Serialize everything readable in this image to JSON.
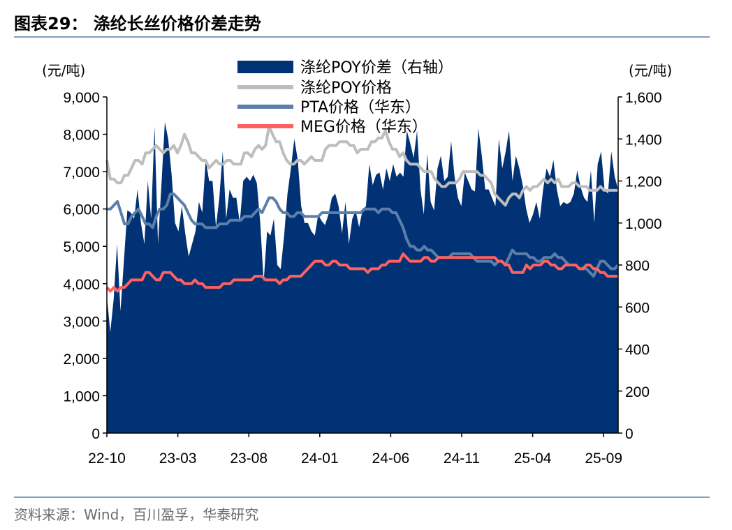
{
  "figure": {
    "title": "图表29：   涤纶长丝价格价差走势",
    "source": "资料来源：Wind，百川盈孚，华泰研究"
  },
  "chart_data": {
    "type": "line",
    "title": "图表29：   涤纶长丝价格价差走势",
    "left_axis": {
      "unit": "(元/吨)",
      "ylim": [
        0,
        9000
      ],
      "ticks": [
        "0",
        "1,000",
        "2,000",
        "3,000",
        "4,000",
        "5,000",
        "6,000",
        "7,000",
        "8,000",
        "9,000"
      ]
    },
    "right_axis": {
      "unit": "(元/吨)",
      "ylim": [
        0,
        1600
      ],
      "ticks": [
        "0",
        "200",
        "400",
        "600",
        "800",
        "1,000",
        "1,200",
        "1,400",
        "1,600"
      ]
    },
    "x_tick_labels": [
      "22-10",
      "23-03",
      "23-08",
      "24-01",
      "24-06",
      "24-11",
      "25-04",
      "25-09"
    ],
    "legend_position": "top-center",
    "colors": {
      "spread": "#003275",
      "poy": "#bdbdbd",
      "pta": "#5b7fa8",
      "meg": "#ff6060"
    },
    "series": [
      {
        "name": "涤纶POY价差（右轴）",
        "type": "area",
        "axis": "right",
        "values": [
          650,
          480,
          640,
          900,
          580,
          820,
          1060,
          1050,
          1020,
          1160,
          1000,
          900,
          1200,
          1020,
          1460,
          900,
          1180,
          1480,
          1400,
          1230,
          1000,
          960,
          1080,
          950,
          840,
          900,
          960,
          1100,
          1050,
          1300,
          1200,
          1200,
          980,
          1120,
          1340,
          1020,
          1160,
          1120,
          1120,
          1000,
          1200,
          1220,
          1200,
          1230,
          1190,
          1000,
          720,
          960,
          940,
          1020,
          800,
          780,
          940,
          1140,
          1260,
          1400,
          1300,
          1080,
          1000,
          1000,
          960,
          940,
          1040,
          1010,
          990,
          1040,
          1120,
          1140,
          1080,
          950,
          1100,
          900,
          1020,
          1060,
          980,
          1060,
          1080,
          1280,
          1180,
          1230,
          1240,
          1160,
          1260,
          1200,
          1280,
          1220,
          1240,
          1220,
          1440,
          1380,
          1310,
          1440,
          1160,
          1040,
          1330,
          1100,
          1060,
          1260,
          1320,
          1200,
          1220,
          1390,
          1220,
          1120,
          1080,
          1240,
          1200,
          1160,
          1150,
          1450,
          1320,
          1160,
          1160,
          1120,
          1080,
          1400,
          1260,
          1340,
          1440,
          1200,
          1320,
          1260,
          1180,
          1070,
          1000,
          1040,
          1100,
          1020,
          1160,
          1260,
          1220,
          1300,
          1160,
          1080,
          1100,
          1090,
          1100,
          1140,
          1250,
          1170,
          1120,
          1100,
          1250,
          1000,
          1280,
          1340,
          1160,
          1140,
          1340,
          1220,
          1160
        ]
      },
      {
        "name": "涤纶POY价格",
        "type": "line",
        "axis": "left",
        "values": [
          7300,
          6800,
          6800,
          6700,
          6700,
          6900,
          6900,
          7100,
          7300,
          7300,
          7200,
          7500,
          7500,
          7600,
          7700,
          7600,
          7500,
          7600,
          7600,
          7700,
          7500,
          7700,
          8000,
          7800,
          7500,
          7500,
          7400,
          7300,
          7300,
          7100,
          7200,
          7300,
          7200,
          7200,
          7300,
          7300,
          7200,
          7200,
          7200,
          7500,
          7500,
          7400,
          7600,
          7700,
          7600,
          7700,
          8200,
          8000,
          7800,
          7800,
          7500,
          7300,
          7200,
          7200,
          7300,
          7300,
          7200,
          7300,
          7400,
          7300,
          7300,
          7300,
          7600,
          7700,
          7700,
          7700,
          7800,
          7800,
          7800,
          7700,
          7700,
          7500,
          7600,
          7600,
          7600,
          7800,
          7800,
          7900,
          7900,
          8100,
          7800,
          7600,
          7600,
          7400,
          7500,
          7300,
          7200,
          7200,
          7200,
          7100,
          7000,
          7000,
          7000,
          6800,
          6700,
          6600,
          6600,
          6700,
          6700,
          6700,
          6800,
          7000,
          7000,
          7000,
          7000,
          7000,
          6900,
          6900,
          6800,
          6700,
          6400,
          6300,
          6200,
          6100,
          6300,
          6400,
          6400,
          6300,
          6500,
          6600,
          6500,
          6600,
          6600,
          6700,
          6800,
          6700,
          6800,
          6700,
          6800,
          6600,
          6600,
          6600,
          6700,
          6700,
          6600,
          6600,
          6600,
          6500,
          6500,
          6500,
          6600,
          6500,
          6500,
          6500,
          6500,
          6500
        ]
      },
      {
        "name": "PTA价格（华东）",
        "type": "line",
        "axis": "left",
        "values": [
          6000,
          6000,
          6100,
          6200,
          5900,
          5600,
          5600,
          5800,
          5900,
          6000,
          5800,
          5600,
          5600,
          5500,
          5800,
          6000,
          6000,
          6100,
          6400,
          6400,
          6300,
          6200,
          6100,
          5900,
          5700,
          5600,
          5600,
          5600,
          5500,
          5500,
          5500,
          5500,
          5600,
          5600,
          5600,
          5700,
          5700,
          5700,
          5700,
          5800,
          5800,
          5800,
          5900,
          6000,
          5900,
          6100,
          6300,
          6300,
          6200,
          6000,
          5900,
          5900,
          5800,
          5800,
          5900,
          5900,
          5800,
          5800,
          5800,
          5800,
          5800,
          5900,
          5900,
          5900,
          5900,
          5900,
          5900,
          5900,
          5900,
          5900,
          5900,
          5900,
          5900,
          6000,
          6000,
          6000,
          6000,
          5900,
          6000,
          6000,
          6000,
          5900,
          5900,
          5700,
          5500,
          5200,
          5000,
          5000,
          4900,
          4900,
          5000,
          4900,
          4900,
          4800,
          4700,
          4700,
          4700,
          4700,
          4800,
          4800,
          4800,
          4800,
          4800,
          4800,
          4700,
          4600,
          4600,
          4600,
          4600,
          4600,
          4500,
          4600,
          4600,
          4500,
          4700,
          4900,
          4800,
          4800,
          4800,
          4800,
          4700,
          4700,
          4600,
          4600,
          4700,
          4700,
          4700,
          4800,
          4700,
          4700,
          4600,
          4500,
          4500,
          4500,
          4400,
          4400,
          4400,
          4300,
          4200,
          4400,
          4600,
          4600,
          4500,
          4400,
          4400,
          4500
        ]
      },
      {
        "name": "MEG价格（华东）",
        "type": "line",
        "axis": "left",
        "values": [
          3900,
          3800,
          3900,
          3800,
          3900,
          3900,
          4000,
          4100,
          4100,
          4100,
          4100,
          4300,
          4300,
          4200,
          4100,
          4100,
          4300,
          4300,
          4300,
          4200,
          4100,
          4100,
          4000,
          4000,
          4000,
          4100,
          4000,
          4000,
          3900,
          3900,
          3900,
          3900,
          3900,
          4000,
          4000,
          4000,
          4100,
          4100,
          4100,
          4100,
          4100,
          4100,
          4200,
          4200,
          4200,
          4100,
          4100,
          4100,
          4100,
          4000,
          4100,
          4100,
          4200,
          4200,
          4200,
          4200,
          4300,
          4400,
          4500,
          4600,
          4600,
          4600,
          4500,
          4500,
          4600,
          4600,
          4500,
          4500,
          4500,
          4400,
          4400,
          4400,
          4400,
          4400,
          4300,
          4400,
          4400,
          4400,
          4500,
          4500,
          4600,
          4600,
          4600,
          4600,
          4800,
          4700,
          4600,
          4600,
          4600,
          4600,
          4700,
          4700,
          4600,
          4600,
          4700,
          4700,
          4700,
          4700,
          4700,
          4700,
          4700,
          4700,
          4700,
          4700,
          4700,
          4700,
          4700,
          4700,
          4700,
          4700,
          4700,
          4600,
          4600,
          4500,
          4500,
          4300,
          4300,
          4300,
          4300,
          4500,
          4400,
          4500,
          4500,
          4500,
          4600,
          4600,
          4500,
          4500,
          4400,
          4400,
          4500,
          4500,
          4500,
          4500,
          4400,
          4400,
          4500,
          4500,
          4400,
          4400,
          4300,
          4300,
          4200,
          4200,
          4200,
          4200
        ]
      }
    ]
  }
}
